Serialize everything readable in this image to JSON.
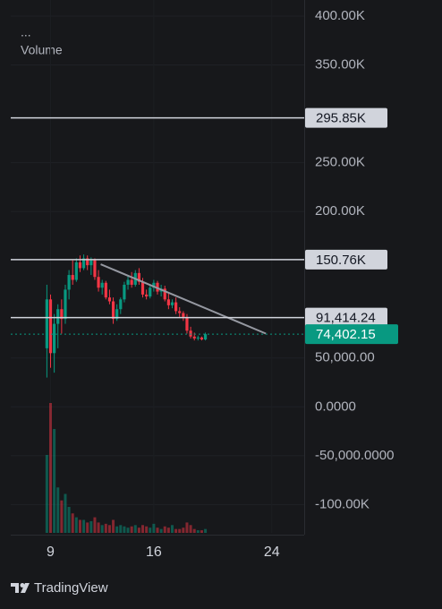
{
  "chart_data": {
    "type": "candlestick",
    "menu": "...",
    "volume_label": "Volume",
    "xlim": [
      6.3,
      26.2
    ],
    "xticks": [
      9,
      16,
      24
    ],
    "ylim": [
      -129000,
      416500
    ],
    "yticks": [
      {
        "value": 400000,
        "label": "400.00K"
      },
      {
        "value": 350000,
        "label": "350.00K"
      },
      {
        "value": 250000,
        "label": "250.00K"
      },
      {
        "value": 200000,
        "label": "200.00K"
      },
      {
        "value": 50000,
        "label": "50,000.00"
      },
      {
        "value": 0,
        "label": "0.0000"
      },
      {
        "value": -50000,
        "label": "-50,000.0000"
      },
      {
        "value": -100000,
        "label": "-100.00K"
      }
    ],
    "grid": true,
    "up_color": "#089981",
    "down_color": "#f23645",
    "candles": {
      "x": [
        8.75,
        9,
        9.25,
        9.5,
        9.75,
        10,
        10.25,
        10.5,
        10.75,
        11,
        11.25,
        11.5,
        11.75,
        12,
        12.25,
        12.5,
        12.75,
        13,
        13.25,
        13.5,
        13.75,
        14,
        14.25,
        14.5,
        14.75,
        15,
        15.25,
        15.5,
        15.75,
        16,
        16.25,
        16.5,
        16.75,
        17,
        17.25,
        17.5,
        17.75,
        18,
        18.25,
        18.5,
        18.75,
        19,
        19.25,
        19.5
      ],
      "open": [
        60000,
        110000,
        55000,
        85000,
        100000,
        90000,
        120000,
        135000,
        130000,
        148000,
        142000,
        152000,
        145000,
        150000,
        133000,
        122000,
        127000,
        112000,
        108000,
        90000,
        100000,
        110000,
        125000,
        130000,
        125000,
        137000,
        128000,
        115000,
        113000,
        122000,
        127000,
        118000,
        121000,
        110000,
        104000,
        107000,
        98000,
        96000,
        92000,
        78000,
        72000,
        70000,
        71000,
        69000
      ],
      "high": [
        125000,
        115000,
        95000,
        105000,
        110000,
        125000,
        140000,
        150000,
        152000,
        155000,
        156000,
        155000,
        153000,
        152000,
        140000,
        130000,
        129000,
        120000,
        112000,
        105000,
        112000,
        128000,
        135000,
        138000,
        140000,
        142000,
        132000,
        120000,
        125000,
        130000,
        129000,
        125000,
        124000,
        116000,
        110000,
        112000,
        102000,
        98000,
        95000,
        82000,
        76000,
        73000,
        72000,
        76000
      ],
      "low": [
        30000,
        40000,
        35000,
        60000,
        75000,
        85000,
        110000,
        125000,
        128000,
        138000,
        140000,
        140000,
        135000,
        130000,
        118000,
        115000,
        110000,
        105000,
        85000,
        88000,
        95000,
        107000,
        120000,
        122000,
        123000,
        125000,
        112000,
        110000,
        111000,
        118000,
        115000,
        113000,
        108000,
        100000,
        101000,
        95000,
        92000,
        88000,
        75000,
        70000,
        68000,
        68000,
        68000,
        68000
      ],
      "close": [
        110000,
        55000,
        85000,
        100000,
        90000,
        120000,
        135000,
        130000,
        148000,
        142000,
        152000,
        145000,
        150000,
        133000,
        122000,
        127000,
        112000,
        108000,
        90000,
        100000,
        110000,
        125000,
        130000,
        125000,
        137000,
        128000,
        115000,
        113000,
        122000,
        127000,
        118000,
        121000,
        110000,
        104000,
        107000,
        98000,
        96000,
        92000,
        78000,
        72000,
        70000,
        71000,
        69000,
        74402.15
      ],
      "volume": [
        60,
        100,
        80,
        35,
        25,
        30,
        20,
        15,
        12,
        10,
        10,
        8,
        9,
        12,
        8,
        6,
        7,
        6,
        10,
        5,
        6,
        5,
        4,
        5,
        6,
        4,
        6,
        5,
        4,
        7,
        4,
        3,
        5,
        4,
        6,
        3,
        3,
        4,
        8,
        6,
        3,
        2,
        2,
        3
      ]
    },
    "trendline": {
      "x": [
        12.4,
        23.6
      ],
      "values": [
        146000,
        75000
      ],
      "color": "#9598a1"
    },
    "price_lines": [
      {
        "value": 295850,
        "label": "295.85K",
        "color": "#d1d4dc"
      },
      {
        "value": 150760,
        "label": "150.76K",
        "color": "#d1d4dc"
      },
      {
        "value": 91414.24,
        "label": "91,414.24",
        "color": "#d1d4dc"
      }
    ],
    "last_price": {
      "value": 74402.15,
      "label": "74,402.15",
      "color": "#089981"
    }
  },
  "brand": "TradingView"
}
